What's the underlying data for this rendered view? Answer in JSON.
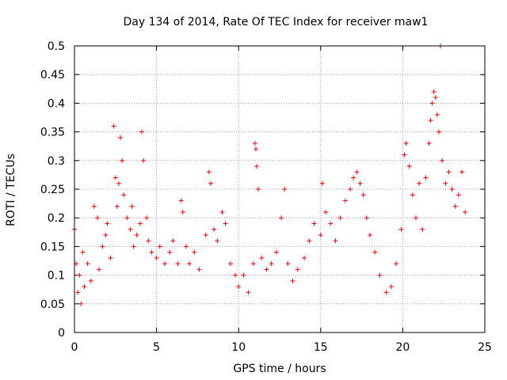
{
  "chart_data": {
    "type": "scatter",
    "title": "Day 134 of 2014, Rate Of TEC Index for receiver maw1",
    "xlabel": "GPS time / hours",
    "ylabel": "ROTI / TECUs",
    "xlim": [
      0,
      25
    ],
    "ylim": [
      0,
      0.5
    ],
    "xticks": [
      0,
      5,
      10,
      15,
      20,
      25
    ],
    "yticks": [
      0,
      0.05,
      0.1,
      0.15,
      0.2,
      0.25,
      0.3,
      0.35,
      0.4,
      0.45,
      0.5
    ],
    "xtick_labels": [
      "0",
      "5",
      "10",
      "15",
      "20",
      "25"
    ],
    "ytick_labels": [
      "0",
      "0.05",
      "0.1",
      "0.15",
      "0.2",
      "0.25",
      "0.3",
      "0.35",
      "0.4",
      "0.45",
      "0.5"
    ],
    "grid": true,
    "marker": "+",
    "color": "#ff0000",
    "series": [
      {
        "name": "ROTI",
        "points": [
          [
            0.0,
            0.18
          ],
          [
            0.1,
            0.12
          ],
          [
            0.2,
            0.07
          ],
          [
            0.3,
            0.1
          ],
          [
            0.4,
            0.05
          ],
          [
            0.5,
            0.14
          ],
          [
            0.6,
            0.08
          ],
          [
            0.8,
            0.12
          ],
          [
            1.0,
            0.09
          ],
          [
            1.2,
            0.22
          ],
          [
            1.4,
            0.2
          ],
          [
            1.5,
            0.11
          ],
          [
            1.7,
            0.15
          ],
          [
            1.9,
            0.17
          ],
          [
            2.0,
            0.19
          ],
          [
            2.2,
            0.13
          ],
          [
            2.4,
            0.36
          ],
          [
            2.5,
            0.27
          ],
          [
            2.6,
            0.22
          ],
          [
            2.7,
            0.26
          ],
          [
            2.8,
            0.34
          ],
          [
            2.9,
            0.3
          ],
          [
            3.0,
            0.24
          ],
          [
            3.2,
            0.2
          ],
          [
            3.4,
            0.18
          ],
          [
            3.5,
            0.22
          ],
          [
            3.6,
            0.15
          ],
          [
            3.8,
            0.17
          ],
          [
            4.0,
            0.19
          ],
          [
            4.1,
            0.35
          ],
          [
            4.2,
            0.3
          ],
          [
            4.4,
            0.2
          ],
          [
            4.5,
            0.16
          ],
          [
            4.7,
            0.14
          ],
          [
            5.0,
            0.13
          ],
          [
            5.2,
            0.15
          ],
          [
            5.5,
            0.12
          ],
          [
            5.8,
            0.14
          ],
          [
            6.0,
            0.16
          ],
          [
            6.3,
            0.12
          ],
          [
            6.5,
            0.23
          ],
          [
            6.6,
            0.21
          ],
          [
            6.8,
            0.15
          ],
          [
            7.0,
            0.12
          ],
          [
            7.3,
            0.14
          ],
          [
            7.6,
            0.11
          ],
          [
            8.0,
            0.17
          ],
          [
            8.2,
            0.28
          ],
          [
            8.3,
            0.26
          ],
          [
            8.5,
            0.18
          ],
          [
            8.7,
            0.16
          ],
          [
            9.0,
            0.21
          ],
          [
            9.2,
            0.19
          ],
          [
            9.5,
            0.12
          ],
          [
            9.8,
            0.1
          ],
          [
            10.0,
            0.08
          ],
          [
            10.3,
            0.1
          ],
          [
            10.6,
            0.07
          ],
          [
            10.9,
            0.12
          ],
          [
            11.0,
            0.33
          ],
          [
            11.05,
            0.32
          ],
          [
            11.1,
            0.29
          ],
          [
            11.2,
            0.25
          ],
          [
            11.4,
            0.13
          ],
          [
            11.7,
            0.11
          ],
          [
            12.0,
            0.12
          ],
          [
            12.3,
            0.14
          ],
          [
            12.6,
            0.2
          ],
          [
            12.8,
            0.25
          ],
          [
            13.0,
            0.12
          ],
          [
            13.3,
            0.09
          ],
          [
            13.6,
            0.11
          ],
          [
            14.0,
            0.13
          ],
          [
            14.3,
            0.16
          ],
          [
            14.6,
            0.19
          ],
          [
            15.0,
            0.17
          ],
          [
            15.1,
            0.26
          ],
          [
            15.3,
            0.21
          ],
          [
            15.6,
            0.19
          ],
          [
            15.9,
            0.16
          ],
          [
            16.2,
            0.2
          ],
          [
            16.5,
            0.23
          ],
          [
            16.8,
            0.25
          ],
          [
            17.0,
            0.27
          ],
          [
            17.2,
            0.28
          ],
          [
            17.4,
            0.26
          ],
          [
            17.6,
            0.24
          ],
          [
            17.8,
            0.2
          ],
          [
            18.0,
            0.17
          ],
          [
            18.3,
            0.14
          ],
          [
            18.6,
            0.1
          ],
          [
            19.0,
            0.07
          ],
          [
            19.3,
            0.08
          ],
          [
            19.6,
            0.12
          ],
          [
            19.9,
            0.18
          ],
          [
            20.1,
            0.31
          ],
          [
            20.2,
            0.33
          ],
          [
            20.4,
            0.29
          ],
          [
            20.6,
            0.24
          ],
          [
            20.8,
            0.2
          ],
          [
            21.0,
            0.26
          ],
          [
            21.2,
            0.18
          ],
          [
            21.4,
            0.27
          ],
          [
            21.6,
            0.33
          ],
          [
            21.7,
            0.37
          ],
          [
            21.8,
            0.4
          ],
          [
            21.9,
            0.42
          ],
          [
            22.0,
            0.41
          ],
          [
            22.1,
            0.38
          ],
          [
            22.2,
            0.35
          ],
          [
            22.3,
            0.5
          ],
          [
            22.4,
            0.3
          ],
          [
            22.6,
            0.26
          ],
          [
            22.8,
            0.28
          ],
          [
            23.0,
            0.25
          ],
          [
            23.2,
            0.22
          ],
          [
            23.4,
            0.24
          ],
          [
            23.6,
            0.28
          ],
          [
            23.8,
            0.21
          ]
        ]
      }
    ]
  }
}
